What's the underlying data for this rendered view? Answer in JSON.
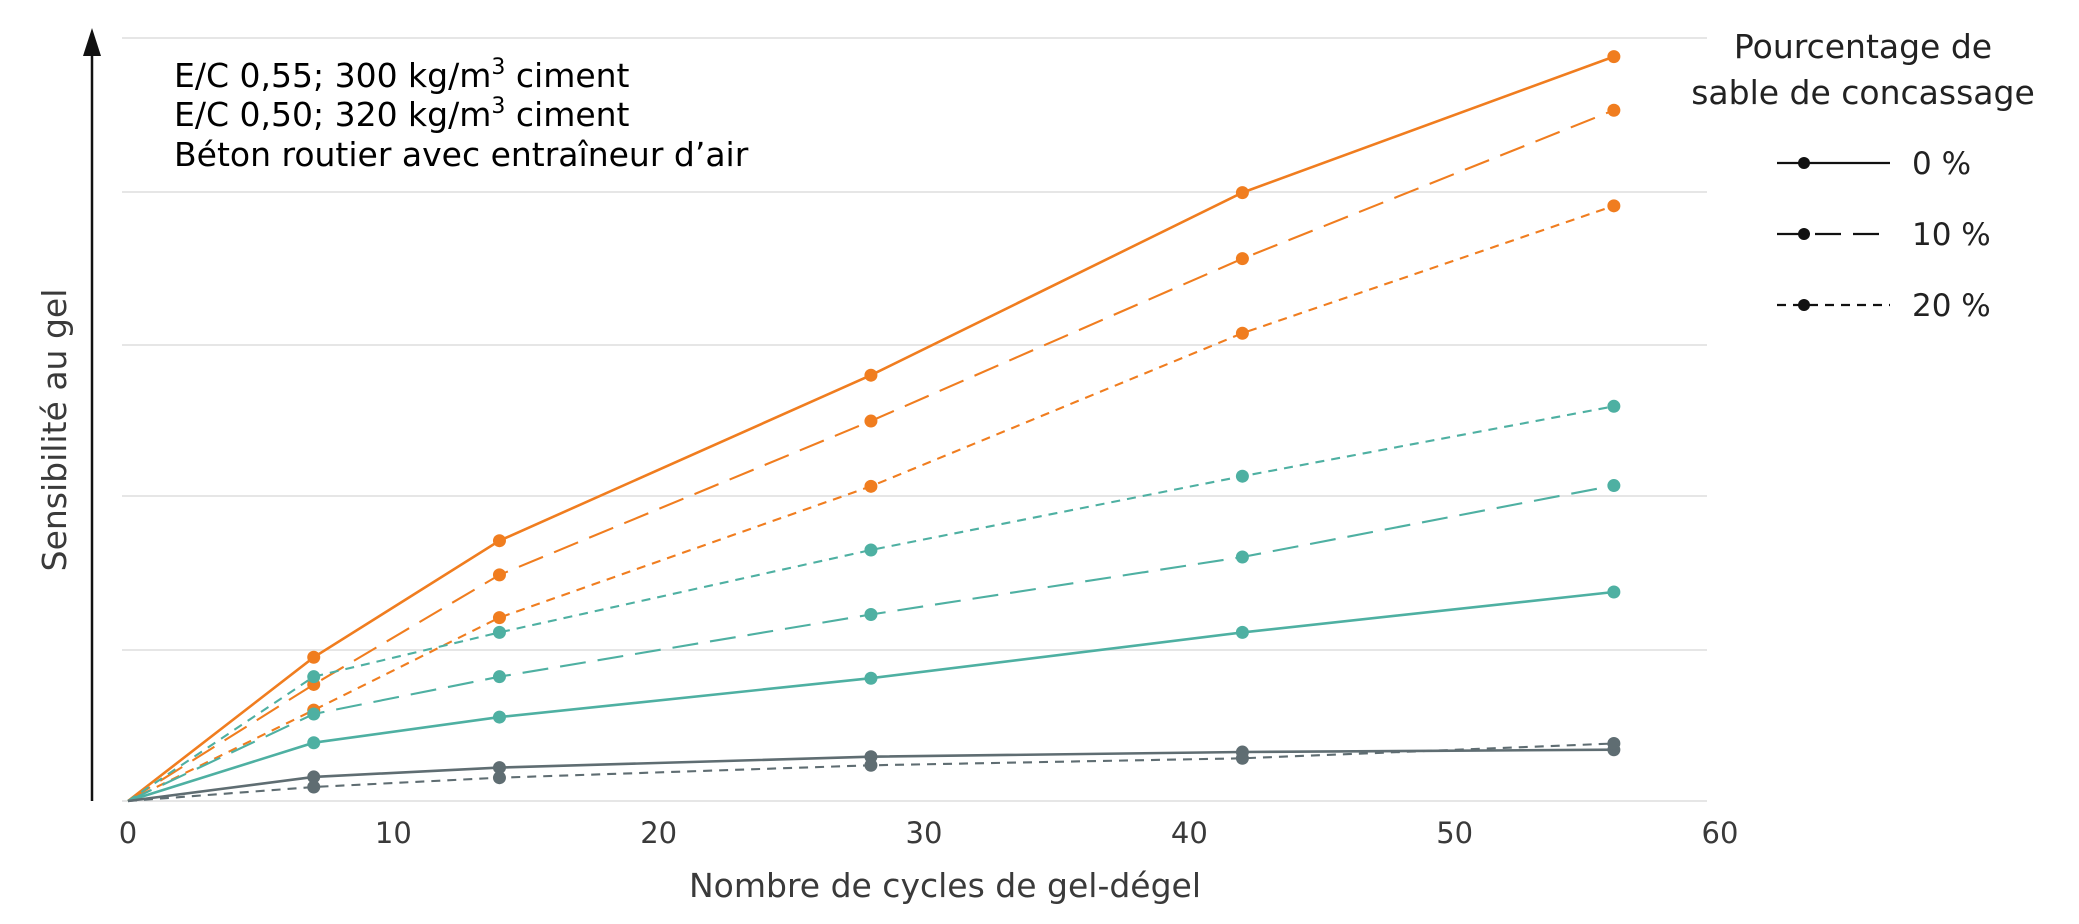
{
  "colors": {
    "orange": "#f07d1f",
    "teal": "#4eb0a2",
    "gray": "#5f6d72",
    "grid": "#dddddd",
    "axis": "#111111"
  },
  "chart_data": {
    "type": "line",
    "title": "",
    "xlabel": "Nombre de cycles de gel-dégel",
    "ylabel": "Sensibilité au gel",
    "xlim": [
      0,
      60
    ],
    "ylim": [
      0,
      100
    ],
    "xticks": [
      "0",
      "10",
      "20",
      "30",
      "40",
      "50",
      "60"
    ],
    "x": [
      0,
      7,
      14,
      28,
      42,
      56
    ],
    "group_labels": {
      "orange": {
        "prefix": "E/C 0,55; 300 kg/m",
        "sup": "3",
        "suffix": " ciment"
      },
      "teal": {
        "prefix": "E/C 0,50; 320 kg/m",
        "sup": "3",
        "suffix": " ciment"
      },
      "gray": {
        "text": "Béton routier avec entraîneur d’air"
      }
    },
    "style_legend": {
      "title_line1": "Pourcentage de",
      "title_line2": "sable de concassage",
      "items": [
        {
          "label": "0 %",
          "dash": "solid"
        },
        {
          "label": "10 %",
          "dash": "long-dash"
        },
        {
          "label": "20 %",
          "dash": "short-dash"
        }
      ]
    },
    "series": [
      {
        "name": "E/C 0,55 – 0 %",
        "group": "orange",
        "dash": "solid",
        "values": [
          0,
          18.5,
          33.5,
          54.8,
          78.3,
          95.8
        ]
      },
      {
        "name": "E/C 0,55 – 10 %",
        "group": "orange",
        "dash": "long-dash",
        "values": [
          0,
          15.0,
          29.1,
          48.9,
          69.8,
          88.9
        ]
      },
      {
        "name": "E/C 0,55 – 20 %",
        "group": "orange",
        "dash": "short-dash",
        "values": [
          0,
          11.7,
          23.6,
          40.5,
          60.2,
          76.6
        ]
      },
      {
        "name": "E/C 0,50 – 0 %",
        "group": "teal",
        "dash": "solid",
        "values": [
          0,
          7.5,
          10.8,
          15.8,
          21.7,
          26.9
        ]
      },
      {
        "name": "E/C 0,50 – 10 %",
        "group": "teal",
        "dash": "long-dash",
        "values": [
          0,
          11.2,
          16.0,
          24.0,
          31.4,
          40.6
        ]
      },
      {
        "name": "E/C 0,50 – 20 %",
        "group": "teal",
        "dash": "short-dash",
        "values": [
          0,
          16.0,
          21.7,
          32.3,
          41.8,
          50.8
        ]
      },
      {
        "name": "Béton routier – 0 %",
        "group": "gray",
        "dash": "solid",
        "values": [
          0,
          3.1,
          4.3,
          5.7,
          6.3,
          6.6
        ]
      },
      {
        "name": "Béton routier – 20 %",
        "group": "gray",
        "dash": "short-dash",
        "values": [
          0,
          1.8,
          3.0,
          4.6,
          5.5,
          7.4
        ]
      }
    ]
  }
}
